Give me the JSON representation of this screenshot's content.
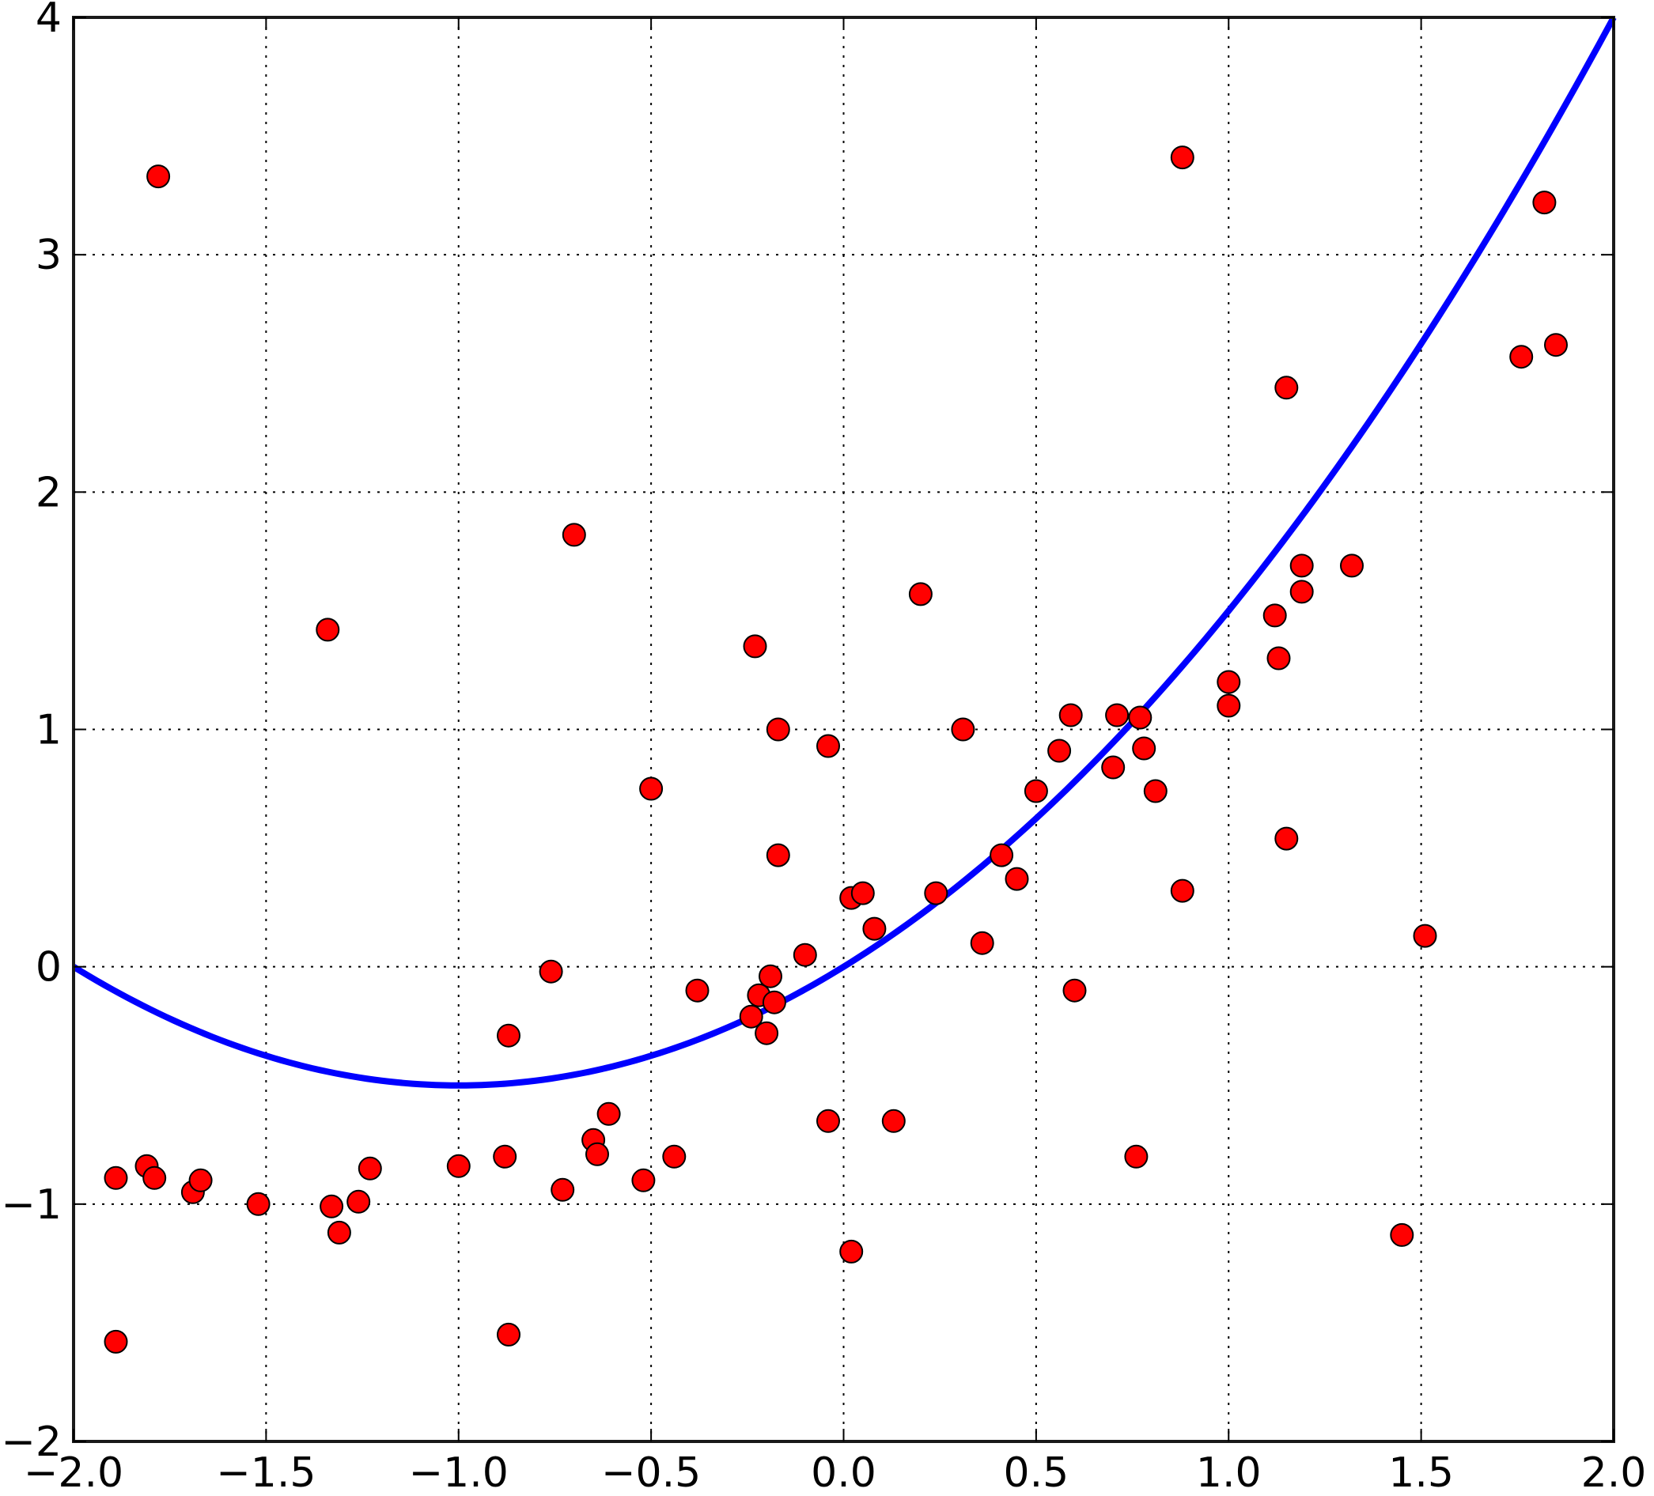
{
  "chart_data": {
    "type": "scatter",
    "title": "",
    "xlabel": "",
    "ylabel": "",
    "xlim": [
      -2.0,
      2.0
    ],
    "ylim": [
      -2,
      4
    ],
    "grid": true,
    "legend": "none",
    "x_ticks": [
      "−2.0",
      "−1.5",
      "−1.0",
      "−0.5",
      "0.0",
      "0.5",
      "1.0",
      "1.5",
      "2.0"
    ],
    "y_ticks": [
      "−2",
      "−1",
      "0",
      "1",
      "2",
      "3",
      "4"
    ],
    "x_tick_values": [
      -2.0,
      -1.5,
      -1.0,
      -0.5,
      0.0,
      0.5,
      1.0,
      1.5,
      2.0
    ],
    "y_tick_values": [
      -2,
      -1,
      0,
      1,
      2,
      3,
      4
    ],
    "colors": {
      "points": "#ff0000",
      "point_edge": "#000000",
      "curve": "#0000ff",
      "grid": "#000000"
    },
    "series": [
      {
        "kind": "points",
        "points": [
          [
            -1.89,
            -0.89
          ],
          [
            -1.81,
            -0.84
          ],
          [
            -1.79,
            -0.89
          ],
          [
            -1.78,
            3.33
          ],
          [
            -1.69,
            -0.95
          ],
          [
            -1.67,
            -0.9
          ],
          [
            -1.89,
            -1.58
          ],
          [
            -1.52,
            -1.0
          ],
          [
            -1.34,
            1.42
          ],
          [
            -1.33,
            -1.01
          ],
          [
            -1.31,
            -1.12
          ],
          [
            -1.26,
            -0.99
          ],
          [
            -1.23,
            -0.85
          ],
          [
            -1.0,
            -0.84
          ],
          [
            -0.88,
            -0.8
          ],
          [
            -0.87,
            -0.29
          ],
          [
            -0.87,
            -1.55
          ],
          [
            -0.76,
            -0.02
          ],
          [
            -0.73,
            -0.94
          ],
          [
            -0.7,
            1.82
          ],
          [
            -0.65,
            -0.73
          ],
          [
            -0.64,
            -0.79
          ],
          [
            -0.61,
            -0.62
          ],
          [
            -0.52,
            -0.9
          ],
          [
            -0.5,
            0.75
          ],
          [
            -0.44,
            -0.8
          ],
          [
            -0.38,
            -0.1
          ],
          [
            -0.23,
            1.35
          ],
          [
            -0.24,
            -0.21
          ],
          [
            -0.22,
            -0.12
          ],
          [
            -0.2,
            -0.28
          ],
          [
            -0.19,
            -0.04
          ],
          [
            -0.18,
            -0.15
          ],
          [
            -0.17,
            1.0
          ],
          [
            -0.17,
            0.47
          ],
          [
            -0.1,
            0.05
          ],
          [
            -0.04,
            0.93
          ],
          [
            -0.04,
            -0.65
          ],
          [
            0.02,
            0.29
          ],
          [
            0.05,
            0.31
          ],
          [
            0.02,
            -1.2
          ],
          [
            0.08,
            0.16
          ],
          [
            0.13,
            -0.65
          ],
          [
            0.2,
            1.57
          ],
          [
            0.24,
            0.31
          ],
          [
            0.31,
            1.0
          ],
          [
            0.36,
            0.1
          ],
          [
            0.41,
            0.47
          ],
          [
            0.45,
            0.37
          ],
          [
            0.5,
            0.74
          ],
          [
            0.56,
            0.91
          ],
          [
            0.59,
            1.06
          ],
          [
            0.6,
            -0.1
          ],
          [
            0.7,
            0.84
          ],
          [
            0.71,
            1.06
          ],
          [
            0.76,
            -0.8
          ],
          [
            0.77,
            1.05
          ],
          [
            0.78,
            0.92
          ],
          [
            0.81,
            0.74
          ],
          [
            0.88,
            3.41
          ],
          [
            0.88,
            0.32
          ],
          [
            1.0,
            1.2
          ],
          [
            1.0,
            1.1
          ],
          [
            1.12,
            1.48
          ],
          [
            1.13,
            1.3
          ],
          [
            1.15,
            2.44
          ],
          [
            1.15,
            0.54
          ],
          [
            1.19,
            1.69
          ],
          [
            1.19,
            1.58
          ],
          [
            1.32,
            1.69
          ],
          [
            1.45,
            -1.13
          ],
          [
            1.51,
            0.13
          ],
          [
            1.76,
            2.57
          ],
          [
            1.82,
            3.22
          ],
          [
            1.85,
            2.62
          ]
        ]
      },
      {
        "kind": "curve",
        "function": "quadratic",
        "coefficients": {
          "a": 0.5,
          "b": 1.0,
          "c": 0.0
        },
        "x_range": [
          -2.0,
          2.0
        ]
      }
    ]
  }
}
